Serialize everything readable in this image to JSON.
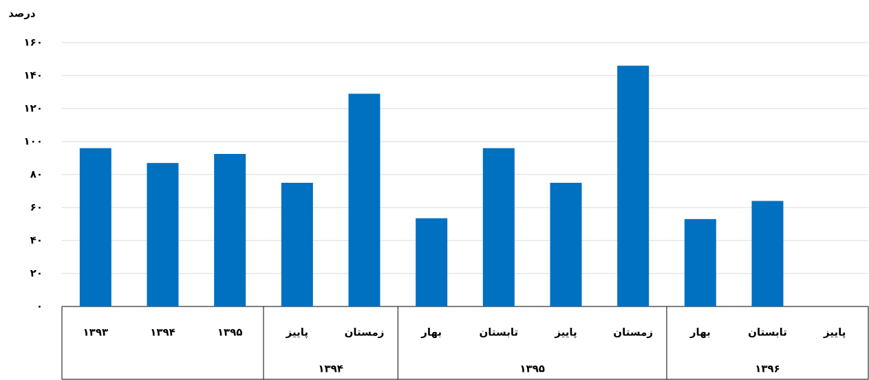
{
  "chart_data": {
    "type": "bar",
    "y_label": "درصد",
    "categories": [
      "۱۳۹۳",
      "۱۳۹۴",
      "۱۳۹۵",
      "پاییز",
      "زمستان",
      "بهار",
      "تابستان",
      "پاییز",
      "زمستان",
      "بهار",
      "تابستان",
      "پاییز"
    ],
    "group_labels": [
      null,
      null,
      null,
      "۱۳۹۴",
      "۱۳۹۴",
      "۱۳۹۵",
      "۱۳۹۵",
      "۱۳۹۵",
      "۱۳۹۵",
      "۱۳۹۶",
      "۱۳۹۶",
      "۱۳۹۶"
    ],
    "values": [
      96,
      87,
      92.5,
      75,
      129,
      53.5,
      96,
      75,
      146,
      53,
      64,
      null
    ],
    "color": "#0070c0",
    "ylim": [
      0,
      160
    ],
    "yticks": [
      {
        "value": 0,
        "label": "۰"
      },
      {
        "value": 20,
        "label": "۲۰"
      },
      {
        "value": 40,
        "label": "۴۰"
      },
      {
        "value": 60,
        "label": "۶۰"
      },
      {
        "value": 80,
        "label": "۸۰"
      },
      {
        "value": 100,
        "label": "۱۰۰"
      },
      {
        "value": 120,
        "label": "۱۲۰"
      },
      {
        "value": 140,
        "label": "۱۴۰"
      },
      {
        "value": 160,
        "label": "۱۶۰"
      }
    ],
    "grid": true
  }
}
